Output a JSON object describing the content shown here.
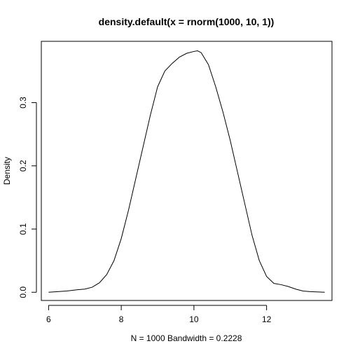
{
  "chart_data": {
    "type": "line",
    "title": "density.default(x = rnorm(1000, 10, 1))",
    "xlabel": "N = 1000   Bandwidth = 0.2228",
    "ylabel": "Density",
    "xlim": [
      5.8,
      13.8
    ],
    "ylim": [
      -0.013,
      0.397
    ],
    "xticks": [
      6,
      8,
      10,
      12
    ],
    "yticks": [
      0.0,
      0.1,
      0.2,
      0.3
    ],
    "ytick_labels": [
      "0.0",
      "0.1",
      "0.2",
      "0.3"
    ],
    "grid": false,
    "series": [
      {
        "x": [
          6.0,
          6.5,
          6.8,
          7.0,
          7.2,
          7.4,
          7.6,
          7.8,
          8.0,
          8.2,
          8.4,
          8.6,
          8.8,
          9.0,
          9.2,
          9.4,
          9.6,
          9.8,
          10.0,
          10.1,
          10.2,
          10.4,
          10.6,
          10.8,
          11.0,
          11.2,
          11.4,
          11.6,
          11.8,
          12.0,
          12.2,
          12.4,
          12.6,
          12.8,
          13.0,
          13.2,
          13.6
        ],
        "y": [
          0.0,
          0.002,
          0.004,
          0.005,
          0.008,
          0.015,
          0.028,
          0.05,
          0.085,
          0.13,
          0.18,
          0.23,
          0.28,
          0.325,
          0.35,
          0.362,
          0.372,
          0.378,
          0.381,
          0.382,
          0.379,
          0.36,
          0.325,
          0.285,
          0.24,
          0.19,
          0.14,
          0.09,
          0.05,
          0.025,
          0.014,
          0.012,
          0.009,
          0.005,
          0.002,
          0.001,
          0.0
        ]
      }
    ]
  }
}
